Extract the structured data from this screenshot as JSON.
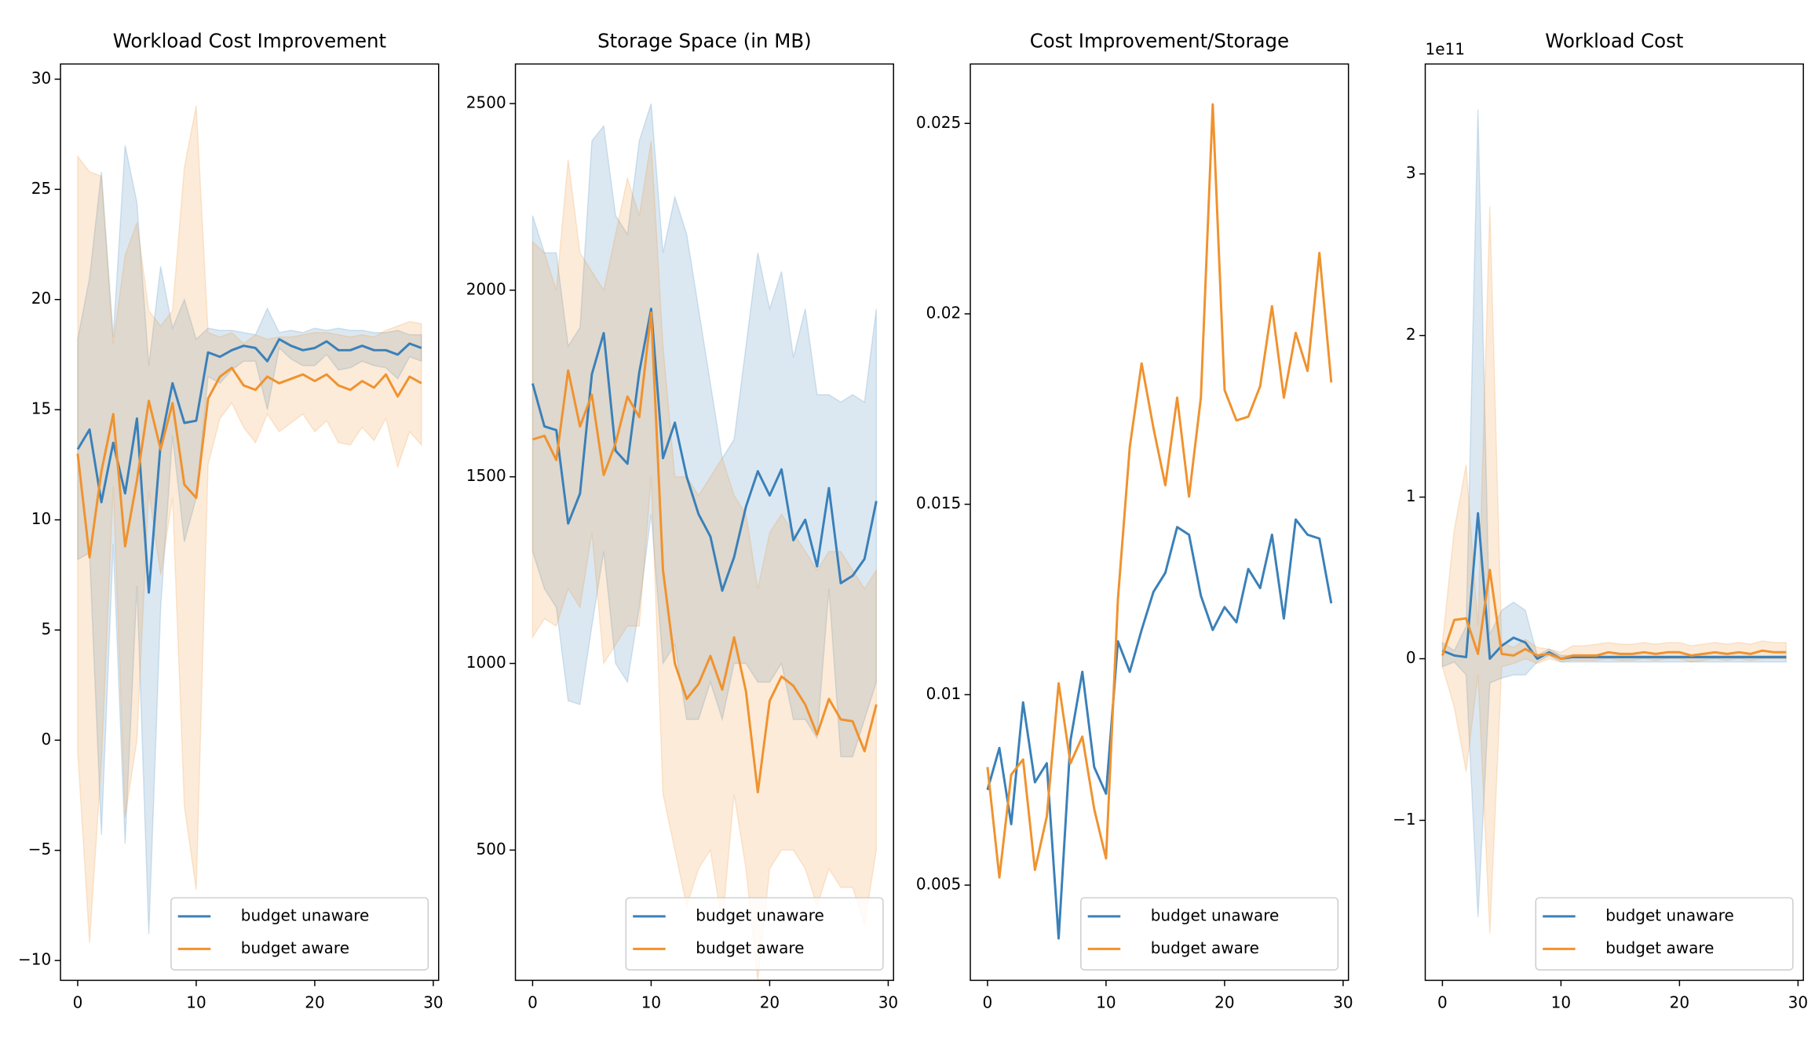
{
  "chart_data": [
    {
      "type": "line",
      "title": "Workload Cost Improvement",
      "legend": "lower right",
      "x": [
        0,
        1,
        2,
        3,
        4,
        5,
        6,
        7,
        8,
        9,
        10,
        11,
        12,
        13,
        14,
        15,
        16,
        17,
        18,
        19,
        20,
        21,
        22,
        23,
        24,
        25,
        26,
        27,
        28,
        29
      ],
      "xlim": [
        -1.45,
        30.45
      ],
      "xticks": [
        0,
        10,
        20,
        30
      ],
      "ylim": [
        -10.9,
        30.69
      ],
      "yticks": [
        {
          "value": -10,
          "label": "−10"
        },
        {
          "value": -5,
          "label": "−5"
        },
        0,
        5,
        10,
        15,
        20,
        25,
        30
      ],
      "series": [
        {
          "name": "budget unaware",
          "color": "#3a80b9",
          "values": [
            13.2,
            14.1,
            10.8,
            13.5,
            11.2,
            14.6,
            6.7,
            13.5,
            16.2,
            14.4,
            14.5,
            17.6,
            17.4,
            17.7,
            17.9,
            17.8,
            17.2,
            18.2,
            17.9,
            17.7,
            17.8,
            18.1,
            17.7,
            17.7,
            17.9,
            17.7,
            17.7,
            17.5,
            18.0,
            17.8
          ],
          "band_upper": [
            18.2,
            21,
            25.8,
            18.3,
            27,
            24.4,
            17,
            21.5,
            18.7,
            20,
            18.2,
            18.7,
            18.6,
            18.6,
            18.5,
            18.4,
            19.6,
            18.5,
            18.6,
            18.5,
            18.7,
            18.6,
            18.7,
            18.6,
            18.6,
            18.5,
            18.5,
            18.6,
            18.4,
            18.4
          ],
          "band_lower": [
            8.2,
            8.5,
            -4.3,
            8.9,
            -4.7,
            7,
            -8.8,
            6,
            13.8,
            9,
            11,
            16.5,
            16.2,
            16.8,
            17.2,
            17.2,
            15,
            17.8,
            17.3,
            17,
            17,
            17.5,
            16.8,
            16.9,
            17.2,
            17,
            16.9,
            16.4,
            17.4,
            17.2
          ]
        },
        {
          "name": "budget aware",
          "color": "#f0922e",
          "values": [
            13.0,
            8.3,
            12.2,
            14.8,
            8.8,
            11.8,
            15.4,
            13.2,
            15.3,
            11.6,
            11.0,
            15.5,
            16.5,
            16.9,
            16.1,
            15.9,
            16.5,
            16.2,
            16.4,
            16.6,
            16.3,
            16.6,
            16.1,
            15.9,
            16.3,
            16.0,
            16.6,
            15.6,
            16.5,
            16.2
          ],
          "band_upper": [
            26.5,
            25.8,
            25.6,
            18,
            22,
            23.5,
            19.5,
            18.8,
            19.5,
            26,
            28.8,
            18.5,
            18.3,
            18.5,
            18,
            18.4,
            18.2,
            18.3,
            18.3,
            18.4,
            18.5,
            18.5,
            18.4,
            18.3,
            18.4,
            18.3,
            18.6,
            18.8,
            19,
            18.9
          ],
          "band_lower": [
            -0.5,
            -9.2,
            -1,
            11.5,
            -3.5,
            0,
            11.3,
            7.5,
            11,
            -3,
            -6.8,
            12.5,
            14.6,
            15.3,
            14.2,
            13.5,
            14.8,
            14,
            14.4,
            14.8,
            14,
            14.5,
            13.5,
            13.4,
            14.2,
            13.6,
            14.6,
            12.4,
            14,
            13.4
          ]
        }
      ]
    },
    {
      "type": "line",
      "title": "Storage Space (in MB)",
      "legend": "lower right",
      "x": [
        0,
        1,
        2,
        3,
        4,
        5,
        6,
        7,
        8,
        9,
        10,
        11,
        12,
        13,
        14,
        15,
        16,
        17,
        18,
        19,
        20,
        21,
        22,
        23,
        24,
        25,
        26,
        27,
        28,
        29
      ],
      "xlim": [
        -1.45,
        30.45
      ],
      "xticks": [
        0,
        10,
        20,
        30
      ],
      "ylim": [
        151,
        2606
      ],
      "yticks": [
        500,
        1000,
        1500,
        2000,
        2500
      ],
      "series": [
        {
          "name": "budget unaware",
          "color": "#3a80b9",
          "values": [
            1750,
            1635,
            1625,
            1375,
            1455,
            1775,
            1885,
            1570,
            1535,
            1780,
            1950,
            1550,
            1645,
            1500,
            1400,
            1340,
            1195,
            1285,
            1420,
            1515,
            1450,
            1520,
            1330,
            1385,
            1260,
            1470,
            1215,
            1235,
            1280,
            1435
          ],
          "band_upper": [
            2200,
            2100,
            2100,
            1850,
            1900,
            2400,
            2440,
            2200,
            2150,
            2400,
            2500,
            2100,
            2250,
            2150,
            1950,
            1750,
            1550,
            1600,
            1850,
            2100,
            1950,
            2050,
            1820,
            1950,
            1720,
            1720,
            1700,
            1720,
            1700,
            1950
          ],
          "band_lower": [
            1300,
            1200,
            1150,
            900,
            890,
            1100,
            1300,
            1000,
            950,
            1150,
            1400,
            1000,
            1050,
            850,
            850,
            950,
            850,
            1000,
            1000,
            950,
            950,
            1000,
            850,
            850,
            800,
            1200,
            750,
            750,
            850,
            950
          ]
        },
        {
          "name": "budget aware",
          "color": "#f0922e",
          "values": [
            1600,
            1610,
            1545,
            1785,
            1635,
            1720,
            1505,
            1590,
            1715,
            1660,
            1940,
            1250,
            1000,
            905,
            945,
            1020,
            930,
            1070,
            925,
            655,
            900,
            965,
            940,
            890,
            810,
            905,
            850,
            845,
            765,
            890
          ],
          "band_upper": [
            2130,
            2100,
            2000,
            2350,
            2100,
            2050,
            2000,
            2150,
            2300,
            2200,
            2400,
            1850,
            1500,
            1500,
            1450,
            1500,
            1550,
            1450,
            1400,
            1200,
            1350,
            1400,
            1350,
            1300,
            1250,
            1300,
            1300,
            1250,
            1200,
            1250
          ],
          "band_lower": [
            1070,
            1120,
            1100,
            1200,
            1150,
            1350,
            1000,
            1050,
            1100,
            1100,
            1500,
            650,
            500,
            350,
            450,
            500,
            300,
            650,
            450,
            150,
            450,
            500,
            500,
            450,
            350,
            450,
            400,
            400,
            300,
            500
          ]
        }
      ]
    },
    {
      "type": "line",
      "title": "Cost Improvement/Storage",
      "legend": "lower right",
      "x": [
        0,
        1,
        2,
        3,
        4,
        5,
        6,
        7,
        8,
        9,
        10,
        11,
        12,
        13,
        14,
        15,
        16,
        17,
        18,
        19,
        20,
        21,
        22,
        23,
        24,
        25,
        26,
        27,
        28,
        29
      ],
      "xlim": [
        -1.45,
        30.45
      ],
      "xticks": [
        0,
        10,
        20,
        30
      ],
      "ylim": [
        0.0025,
        0.02656
      ],
      "yticks": [
        0.005,
        0.01,
        0.015,
        0.02,
        0.025
      ],
      "series": [
        {
          "name": "budget unaware",
          "color": "#3a80b9",
          "values": [
            0.0075,
            0.0086,
            0.0066,
            0.0098,
            0.0077,
            0.0082,
            0.0036,
            0.0088,
            0.0106,
            0.0081,
            0.0074,
            0.0114,
            0.0106,
            0.0117,
            0.0127,
            0.0132,
            0.0144,
            0.0142,
            0.0126,
            0.0117,
            0.0123,
            0.0119,
            0.0133,
            0.0128,
            0.0142,
            0.012,
            0.0146,
            0.0142,
            0.0141,
            0.0124
          ]
        },
        {
          "name": "budget aware",
          "color": "#f0922e",
          "values": [
            0.0081,
            0.0052,
            0.0079,
            0.0083,
            0.0054,
            0.0068,
            0.0103,
            0.0082,
            0.0089,
            0.007,
            0.0057,
            0.0125,
            0.0165,
            0.0187,
            0.017,
            0.0155,
            0.0178,
            0.0152,
            0.0178,
            0.0255,
            0.018,
            0.0172,
            0.0173,
            0.0181,
            0.0202,
            0.0178,
            0.0195,
            0.0185,
            0.0216,
            0.0182
          ]
        }
      ]
    },
    {
      "type": "line",
      "title": "Workload Cost",
      "offset_label": "1e11",
      "legend": "lower right",
      "x": [
        0,
        1,
        2,
        3,
        4,
        5,
        6,
        7,
        8,
        9,
        10,
        11,
        12,
        13,
        14,
        15,
        16,
        17,
        18,
        19,
        20,
        21,
        22,
        23,
        24,
        25,
        26,
        27,
        28,
        29
      ],
      "xlim": [
        -1.45,
        30.45
      ],
      "xticks": [
        0,
        10,
        20,
        30
      ],
      "ylim": [
        -1.99,
        3.68
      ],
      "yticks": [
        {
          "value": -1,
          "label": "−1"
        },
        0,
        1,
        2,
        3
      ],
      "series": [
        {
          "name": "budget unaware",
          "color": "#3a80b9",
          "values": [
            0.05,
            0.02,
            0.01,
            0.9,
            0,
            0.08,
            0.13,
            0.1,
            0,
            0.04,
            0,
            0.01,
            0.01,
            0.01,
            0.01,
            0.01,
            0.01,
            0.01,
            0.01,
            0.01,
            0.01,
            0.01,
            0.01,
            0.01,
            0.01,
            0.01,
            0.01,
            0.01,
            0.01,
            0.01
          ],
          "band_upper": [
            0.1,
            0.05,
            0.2,
            3.4,
            0.15,
            0.3,
            0.35,
            0.3,
            0.02,
            0.06,
            0.02,
            0.02,
            0.02,
            0.02,
            0.02,
            0.02,
            0.02,
            0.02,
            0.02,
            0.02,
            0.02,
            0.02,
            0.02,
            0.02,
            0.02,
            0.02,
            0.02,
            0.02,
            0.02,
            0.02
          ],
          "band_lower": [
            -0.05,
            -0.02,
            -0.1,
            -1.6,
            -0.15,
            -0.12,
            -0.1,
            -0.1,
            -0.02,
            0.02,
            -0.02,
            -0.02,
            -0.02,
            -0.02,
            -0.02,
            -0.02,
            -0.02,
            -0.02,
            -0.02,
            -0.02,
            -0.02,
            -0.02,
            -0.02,
            -0.02,
            -0.02,
            -0.02,
            -0.02,
            -0.02,
            -0.02,
            -0.02
          ]
        },
        {
          "name": "budget aware",
          "color": "#f0922e",
          "values": [
            0.02,
            0.24,
            0.25,
            0.03,
            0.55,
            0.03,
            0.02,
            0.06,
            0.02,
            0.03,
            0,
            0.02,
            0.02,
            0.02,
            0.04,
            0.03,
            0.03,
            0.04,
            0.03,
            0.04,
            0.04,
            0.02,
            0.03,
            0.04,
            0.03,
            0.04,
            0.03,
            0.05,
            0.04,
            0.04
          ],
          "band_upper": [
            0.1,
            0.8,
            1.2,
            0.2,
            2.8,
            0.1,
            0.07,
            0.12,
            0.07,
            0.06,
            0.04,
            0.08,
            0.08,
            0.09,
            0.1,
            0.09,
            0.09,
            0.1,
            0.09,
            0.1,
            0.1,
            0.08,
            0.09,
            0.1,
            0.09,
            0.1,
            0.09,
            0.11,
            0.1,
            0.1
          ],
          "band_lower": [
            -0.05,
            -0.3,
            -0.7,
            -0.1,
            -1.7,
            -0.05,
            -0.03,
            0,
            -0.03,
            0,
            -0.02,
            -0.01,
            -0.01,
            -0.01,
            0,
            -0.01,
            -0.01,
            0,
            -0.01,
            0,
            0,
            -0.02,
            -0.01,
            0,
            -0.01,
            0,
            -0.01,
            0,
            0,
            0
          ]
        }
      ]
    }
  ]
}
